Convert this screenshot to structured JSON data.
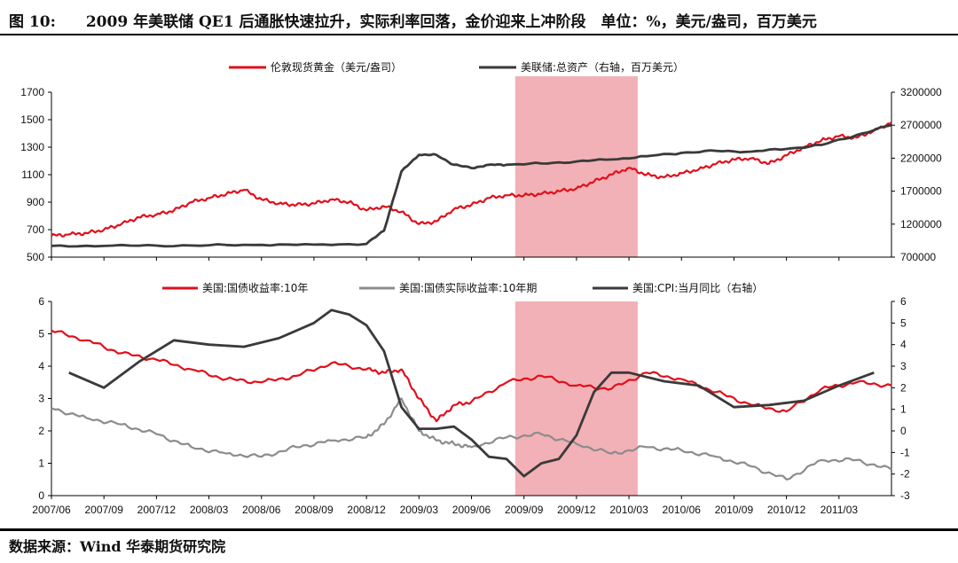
{
  "figure": {
    "title": "图 10:　　2009 年美联储 QE1 后通胀快速拉升，实际利率回落，金价迎来上冲阶段　单位：%，美元/盎司，百万美元",
    "source": "数据来源：Wind  华泰期货研究院"
  },
  "colors": {
    "red": "#e0101c",
    "black": "#3a3a3a",
    "gray": "#8c8c8c",
    "shade": "#f2b1b6"
  },
  "chart_data": [
    {
      "type": "line",
      "title": "",
      "x_ticks": [
        "2007/06",
        "2007/09",
        "2007/12",
        "2008/03",
        "2008/06",
        "2008/09",
        "2008/12",
        "2009/03",
        "2009/06",
        "2009/09",
        "2009/12",
        "2010/03",
        "2010/06",
        "2010/09",
        "2010/12",
        "2011/03"
      ],
      "x_range": [
        0,
        48
      ],
      "shaded_region": [
        26.5,
        33.5
      ],
      "ylim_left": [
        500,
        1700
      ],
      "yticks_left": [
        "500",
        "700",
        "900",
        "1100",
        "1300",
        "1500",
        "1700"
      ],
      "ylim_right": [
        700000,
        3200000
      ],
      "yticks_right": [
        "700000",
        "1200000",
        "1700000",
        "2200000",
        "2700000",
        "3200000"
      ],
      "series": [
        {
          "name": "伦敦现货黄金（美元/盎司）",
          "axis": "left",
          "color_key": "red",
          "x": [
            0,
            1,
            2,
            3,
            4,
            5,
            6,
            7,
            8,
            9,
            10,
            11,
            12,
            13,
            14,
            15,
            16,
            17,
            18,
            19,
            20,
            21,
            22,
            23,
            24,
            25,
            26,
            27,
            28,
            29,
            30,
            31,
            32,
            33,
            34,
            35,
            36,
            37,
            38,
            39,
            40,
            41,
            42,
            43,
            44,
            45,
            46,
            47,
            48
          ],
          "y": [
            655,
            665,
            675,
            700,
            740,
            790,
            810,
            840,
            900,
            930,
            960,
            990,
            920,
            890,
            880,
            890,
            920,
            900,
            840,
            870,
            830,
            740,
            760,
            850,
            880,
            930,
            950,
            950,
            960,
            980,
            1000,
            1050,
            1100,
            1150,
            1100,
            1080,
            1110,
            1140,
            1180,
            1210,
            1220,
            1180,
            1240,
            1300,
            1350,
            1380,
            1370,
            1420,
            1480
          ]
        },
        {
          "name": "美联储:总资产（右轴，百万美元）",
          "axis": "right",
          "color_key": "black",
          "x": [
            0,
            3,
            6,
            9,
            12,
            15,
            18,
            19,
            20,
            21,
            22,
            23,
            24,
            25,
            26,
            28,
            30,
            32,
            34,
            36,
            38,
            40,
            42,
            44,
            46,
            48
          ],
          "y": [
            870000,
            870000,
            875000,
            880000,
            885000,
            890000,
            900000,
            1100000,
            2000000,
            2250000,
            2250000,
            2100000,
            2050000,
            2100000,
            2100000,
            2120000,
            2150000,
            2180000,
            2230000,
            2280000,
            2310000,
            2300000,
            2340000,
            2400000,
            2550000,
            2700000
          ]
        }
      ]
    },
    {
      "type": "line",
      "title": "",
      "x_ticks": [
        "2007/06",
        "2007/09",
        "2007/12",
        "2008/03",
        "2008/06",
        "2008/09",
        "2008/12",
        "2009/03",
        "2009/06",
        "2009/09",
        "2009/12",
        "2010/03",
        "2010/06",
        "2010/09",
        "2010/12",
        "2011/03"
      ],
      "x_range": [
        0,
        48
      ],
      "shaded_region": [
        26.5,
        33.5
      ],
      "ylim_left": [
        0,
        6
      ],
      "yticks_left": [
        "0",
        "1",
        "2",
        "3",
        "4",
        "5",
        "6"
      ],
      "ylim_right": [
        -3,
        6
      ],
      "yticks_right": [
        "-3",
        "-2",
        "-1",
        "0",
        "1",
        "2",
        "3",
        "4",
        "5",
        "6"
      ],
      "series": [
        {
          "name": "美国:国债收益率:10年",
          "axis": "left",
          "color_key": "red",
          "x": [
            0,
            2,
            4,
            6,
            8,
            10,
            12,
            14,
            16,
            18,
            19,
            20,
            21,
            22,
            23,
            24,
            26,
            28,
            30,
            32,
            34,
            36,
            38,
            40,
            42,
            44,
            46,
            48
          ],
          "y": [
            5.1,
            4.8,
            4.4,
            4.2,
            3.9,
            3.6,
            3.5,
            3.7,
            4.1,
            3.9,
            3.8,
            3.9,
            3.0,
            2.3,
            2.8,
            2.9,
            3.5,
            3.7,
            3.4,
            3.3,
            3.8,
            3.6,
            3.2,
            2.8,
            2.6,
            3.3,
            3.5,
            3.4
          ]
        },
        {
          "name": "美国:国债实际收益率:10年期",
          "axis": "left",
          "color_key": "gray",
          "x": [
            0,
            2,
            4,
            6,
            8,
            10,
            12,
            14,
            16,
            18,
            19,
            20,
            21,
            22,
            23,
            24,
            26,
            28,
            30,
            32,
            34,
            36,
            38,
            40,
            42,
            44,
            46,
            48
          ],
          "y": [
            2.7,
            2.4,
            2.2,
            1.9,
            1.5,
            1.3,
            1.2,
            1.5,
            1.7,
            1.8,
            2.2,
            3.0,
            2.0,
            1.7,
            1.6,
            1.5,
            1.8,
            1.9,
            1.6,
            1.3,
            1.5,
            1.4,
            1.2,
            0.9,
            0.5,
            1.1,
            1.1,
            0.8
          ]
        },
        {
          "name": "美国:CPI:当月同比（右轴）",
          "axis": "right",
          "color_key": "black",
          "x": [
            1,
            3,
            5,
            7,
            9,
            11,
            13,
            15,
            16,
            17,
            18,
            19,
            20,
            21,
            22,
            23,
            24,
            25,
            26,
            27,
            28,
            29,
            30,
            31,
            32,
            33,
            35,
            37,
            39,
            41,
            43,
            45,
            47
          ],
          "y": [
            2.7,
            2.0,
            3.2,
            4.2,
            4.0,
            3.9,
            4.3,
            5.0,
            5.6,
            5.4,
            4.9,
            3.7,
            1.1,
            0.1,
            0.1,
            0.2,
            -0.4,
            -1.2,
            -1.3,
            -2.1,
            -1.5,
            -1.3,
            -0.2,
            1.8,
            2.7,
            2.7,
            2.3,
            2.1,
            1.1,
            1.2,
            1.4,
            2.1,
            2.7
          ]
        }
      ],
      "legend_names": [
        "美国:国债收益率:10年",
        "美国:国债实际收益率:10年期",
        "美国:CPI:当月同比（右轴）"
      ]
    }
  ],
  "legend_top": [
    "伦敦现货黄金（美元/盎司）",
    "美联储:总资产（右轴，百万美元）"
  ],
  "legend_bottom": [
    "美国:国债收益率:10年",
    "美国:国债实际收益率:10年期",
    "美国:CPI:当月同比（右轴）"
  ]
}
